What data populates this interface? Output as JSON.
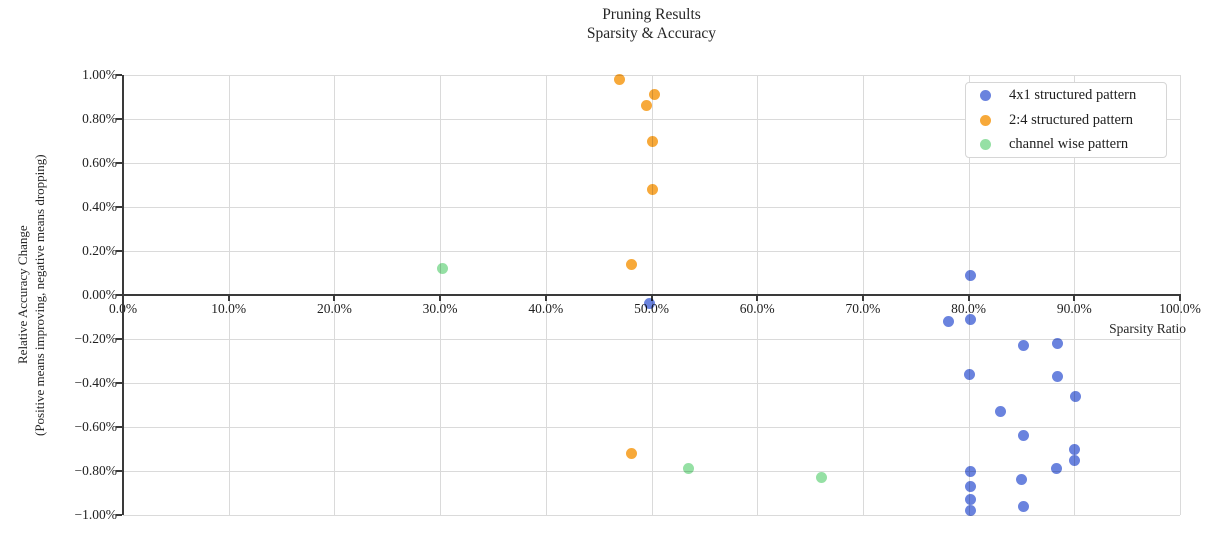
{
  "title": "Pruning Results\nSparsity & Accuracy",
  "chart_data": {
    "type": "scatter",
    "title_line1": "Pruning Results",
    "title_line2": "Sparsity & Accuracy",
    "xlabel": "Sparsity Ratio",
    "ylabel_line1": "Relative Accuracy Change",
    "ylabel_line2": "(Positive means improving, negative means dropping)",
    "xlim": [
      0,
      100
    ],
    "ylim": [
      -1.0,
      1.0
    ],
    "grid": true,
    "legend_position": "top-right",
    "background_color": "#ffffff",
    "grid_color": "#dadada",
    "axis_color": "#3a3a3a",
    "text_color": "#262626",
    "x_ticks": [
      {
        "value": 0,
        "label": "0.0%"
      },
      {
        "value": 10,
        "label": "10.0%"
      },
      {
        "value": 20,
        "label": "20.0%"
      },
      {
        "value": 30,
        "label": "30.0%"
      },
      {
        "value": 40,
        "label": "40.0%"
      },
      {
        "value": 50,
        "label": "50.0%"
      },
      {
        "value": 60,
        "label": "60.0%"
      },
      {
        "value": 70,
        "label": "70.0%"
      },
      {
        "value": 80,
        "label": "80.0%"
      },
      {
        "value": 90,
        "label": "90.0%"
      },
      {
        "value": 100,
        "label": "100.0%"
      }
    ],
    "y_ticks": [
      {
        "value": 1.0,
        "label": "1.00%"
      },
      {
        "value": 0.8,
        "label": "0.80%"
      },
      {
        "value": 0.6,
        "label": "0.60%"
      },
      {
        "value": 0.4,
        "label": "0.40%"
      },
      {
        "value": 0.2,
        "label": "0.20%"
      },
      {
        "value": 0.0,
        "label": "0.00%"
      },
      {
        "value": -0.2,
        "label": "−0.20%"
      },
      {
        "value": -0.4,
        "label": "−0.40%"
      },
      {
        "value": -0.6,
        "label": "−0.60%"
      },
      {
        "value": -0.8,
        "label": "−0.80%"
      },
      {
        "value": -1.0,
        "label": "−1.00%"
      }
    ],
    "series": [
      {
        "name": "4x1 structured pattern",
        "color": "#6a83de",
        "points": [
          [
            49.8,
            -0.04
          ],
          [
            78.1,
            -0.12
          ],
          [
            80.2,
            0.09
          ],
          [
            80.2,
            -0.11
          ],
          [
            80.1,
            -0.36
          ],
          [
            80.2,
            -0.8
          ],
          [
            80.2,
            -0.87
          ],
          [
            80.2,
            -0.93
          ],
          [
            80.2,
            -0.98
          ],
          [
            83.0,
            -0.53
          ],
          [
            85.2,
            -0.23
          ],
          [
            85.2,
            -0.64
          ],
          [
            85.0,
            -0.84
          ],
          [
            85.2,
            -0.96
          ],
          [
            88.4,
            -0.22
          ],
          [
            88.4,
            -0.37
          ],
          [
            88.3,
            -0.79
          ],
          [
            90.1,
            -0.46
          ],
          [
            90.0,
            -0.7
          ],
          [
            90.0,
            -0.75
          ]
        ]
      },
      {
        "name": "2:4 structured pattern",
        "color": "#f7a93a",
        "points": [
          [
            47.0,
            0.98
          ],
          [
            50.3,
            0.91
          ],
          [
            49.5,
            0.86
          ],
          [
            50.1,
            0.7
          ],
          [
            50.1,
            0.48
          ],
          [
            48.1,
            0.14
          ],
          [
            48.1,
            -0.72
          ]
        ]
      },
      {
        "name": "channel wise pattern",
        "color": "#95e0a4",
        "points": [
          [
            30.2,
            0.12
          ],
          [
            53.5,
            -0.79
          ],
          [
            66.1,
            -0.83
          ]
        ]
      }
    ]
  }
}
